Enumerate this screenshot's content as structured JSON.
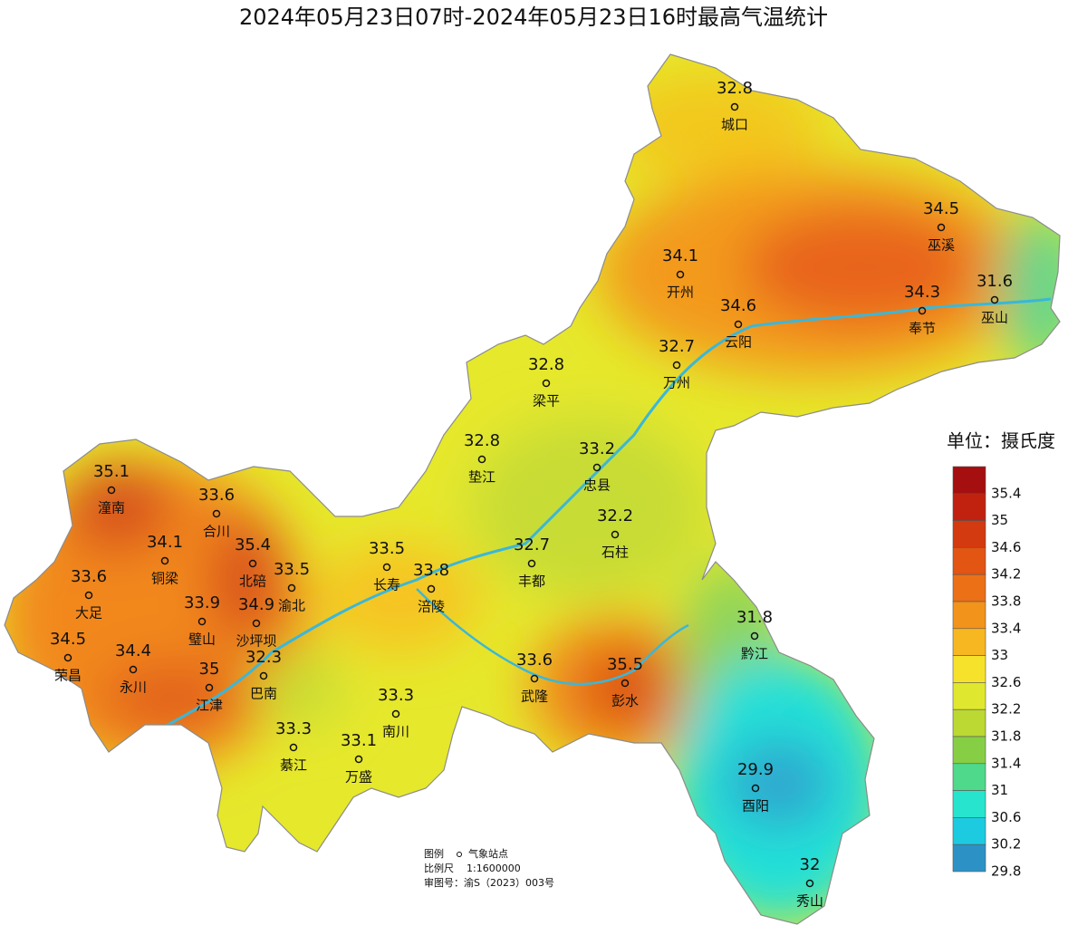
{
  "title": "2024年05月23日07时-2024年05月23日16时最高气温统计",
  "stations": [
    {
      "name": "城口",
      "value": 32.8
    },
    {
      "name": "巫溪",
      "value": 34.5
    },
    {
      "name": "开州",
      "value": 34.1
    },
    {
      "name": "云阳",
      "value": 34.6
    },
    {
      "name": "奉节",
      "value": 34.3
    },
    {
      "name": "巫山",
      "value": 31.6
    },
    {
      "name": "万州",
      "value": 32.7
    },
    {
      "name": "梁平",
      "value": 32.8
    },
    {
      "name": "垫江",
      "value": 32.8
    },
    {
      "name": "忠县",
      "value": 33.2
    },
    {
      "name": "石柱",
      "value": 32.2
    },
    {
      "name": "丰都",
      "value": 32.7
    },
    {
      "name": "长寿",
      "value": 33.5
    },
    {
      "name": "涪陵",
      "value": 33.8
    },
    {
      "name": "潼南",
      "value": 35.1
    },
    {
      "name": "合川",
      "value": 33.6
    },
    {
      "name": "北碚",
      "value": 35.4
    },
    {
      "name": "渝北",
      "value": 33.5
    },
    {
      "name": "铜梁",
      "value": 34.1
    },
    {
      "name": "大足",
      "value": 33.6
    },
    {
      "name": "璧山",
      "value": 33.9
    },
    {
      "name": "沙坪坝",
      "value": 34.9
    },
    {
      "name": "荣昌",
      "value": 34.5
    },
    {
      "name": "永川",
      "value": 34.4
    },
    {
      "name": "江津",
      "value": 35
    },
    {
      "name": "巴南",
      "value": 32.3
    },
    {
      "name": "綦江",
      "value": 33.3
    },
    {
      "name": "南川",
      "value": 33.3
    },
    {
      "name": "万盛",
      "value": 33.1
    },
    {
      "name": "武隆",
      "value": 33.6
    },
    {
      "name": "彭水",
      "value": 35.5
    },
    {
      "name": "黔江",
      "value": 31.8
    },
    {
      "name": "酉阳",
      "value": 29.9
    },
    {
      "name": "秀山",
      "value": 32
    }
  ],
  "legend": {
    "title": "单位：摄氏度",
    "labels": [
      35.4,
      35,
      34.6,
      34.2,
      33.8,
      33.4,
      33,
      32.6,
      32.2,
      31.8,
      31.4,
      31,
      30.6,
      30.2,
      29.8
    ],
    "colors": [
      "#a50f0f",
      "#c0220f",
      "#d33a10",
      "#e25512",
      "#ec7016",
      "#f2931b",
      "#f6b720",
      "#f6e22a",
      "#dfe82e",
      "#bcd833",
      "#86cf45",
      "#4fd98a",
      "#27e4cf",
      "#1ccbe0",
      "#2c92c6"
    ]
  },
  "notes": {
    "legend_label": "图例",
    "station_label": "气象站点",
    "scale_label": "比例尺",
    "scale": "1:1600000",
    "approval": "审图号：渝S（2023）003号"
  }
}
